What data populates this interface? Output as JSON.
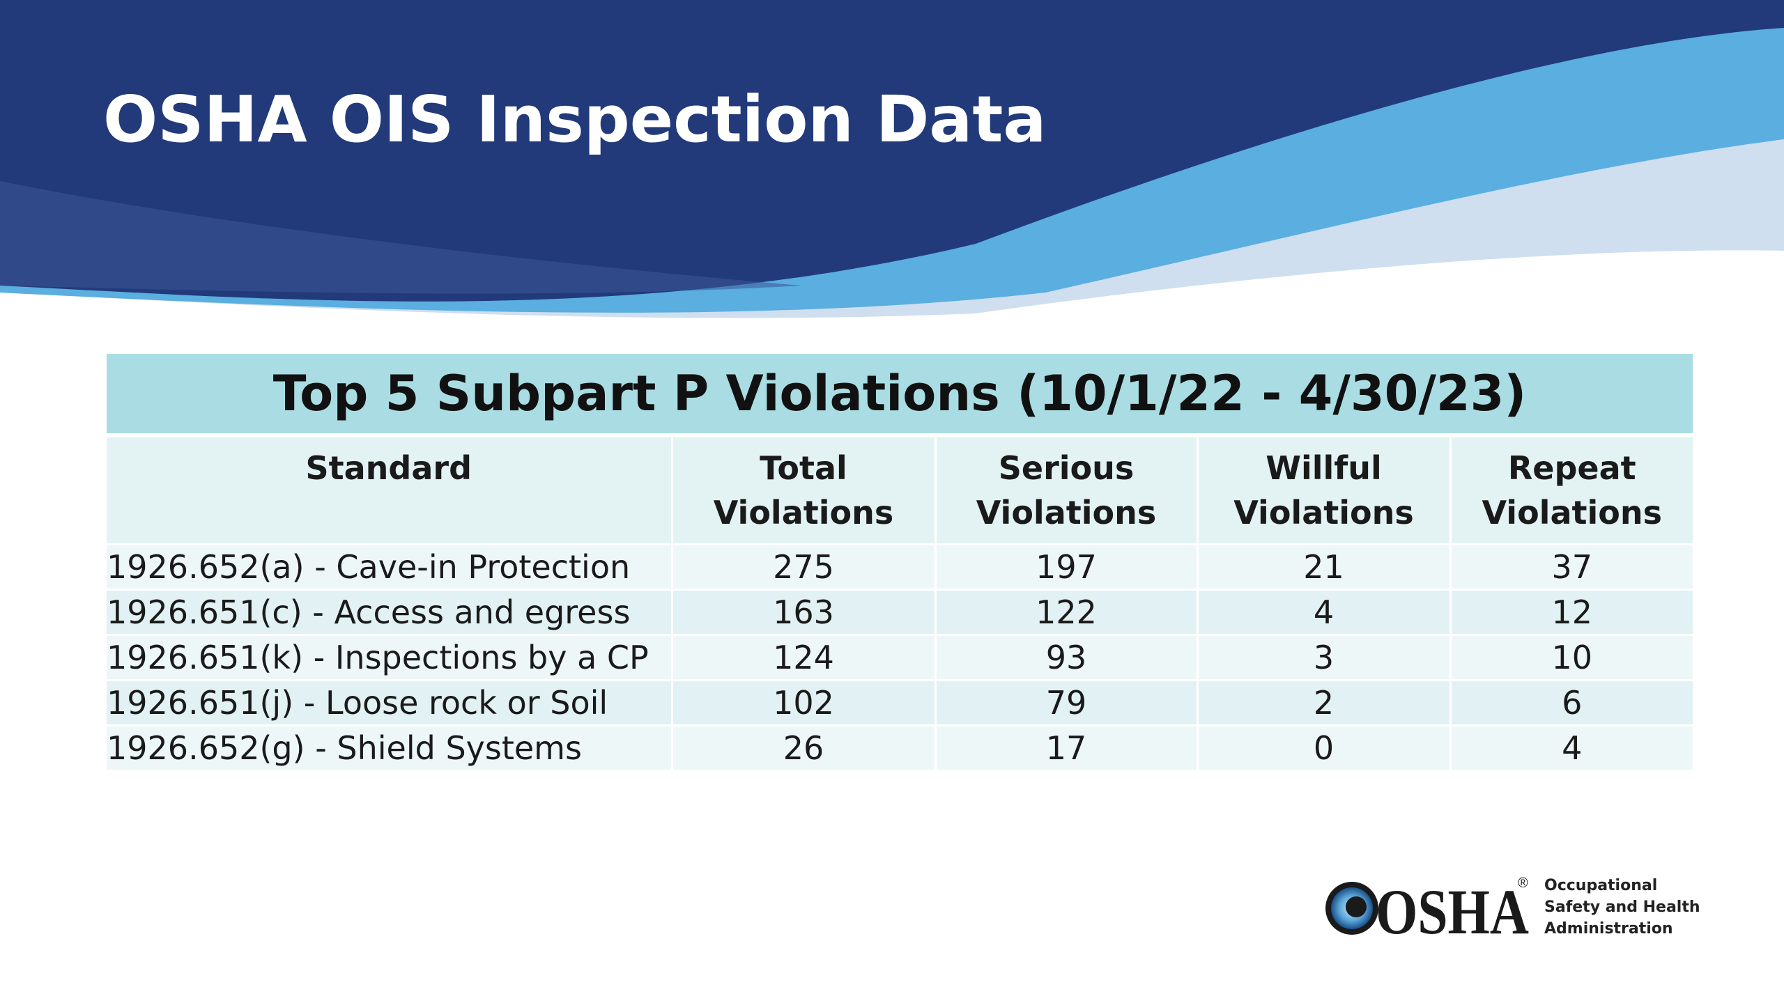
{
  "slide": {
    "title": "OSHA OIS Inspection Data"
  },
  "table": {
    "caption": "Top 5 Subpart P Violations (10/1/22 - 4/30/23)",
    "headers": [
      {
        "line1": "Standard",
        "line2": ""
      },
      {
        "line1": "Total",
        "line2": "Violations"
      },
      {
        "line1": "Serious",
        "line2": "Violations"
      },
      {
        "line1": "Willful",
        "line2": "Violations"
      },
      {
        "line1": "Repeat",
        "line2": "Violations"
      }
    ],
    "rows": [
      {
        "standard": "1926.652(a) - Cave-in Protection",
        "total": "275",
        "serious": "197",
        "willful": "21",
        "repeat": "37"
      },
      {
        "standard": "1926.651(c) - Access and egress",
        "total": "163",
        "serious": "122",
        "willful": "4",
        "repeat": "12"
      },
      {
        "standard": "1926.651(k) - Inspections by a CP",
        "total": "124",
        "serious": "93",
        "willful": "3",
        "repeat": "10"
      },
      {
        "standard": "1926.651(j) - Loose rock or Soil",
        "total": "102",
        "serious": "79",
        "willful": "2",
        "repeat": "6"
      },
      {
        "standard": "1926.652(g) - Shield Systems",
        "total": "26",
        "serious": "17",
        "willful": "0",
        "repeat": "4"
      }
    ]
  },
  "logo": {
    "wordmark": "OSHA",
    "registered": "®",
    "tagline": [
      "Occupational",
      "Safety and Health",
      "Administration"
    ]
  },
  "colors": {
    "banner_dark": "#223a7a",
    "banner_light": "#5aaee0",
    "banner_pale": "#cfe0ef",
    "caption_bg": "#a9dde3",
    "header_bg": "#e3f3f4"
  }
}
